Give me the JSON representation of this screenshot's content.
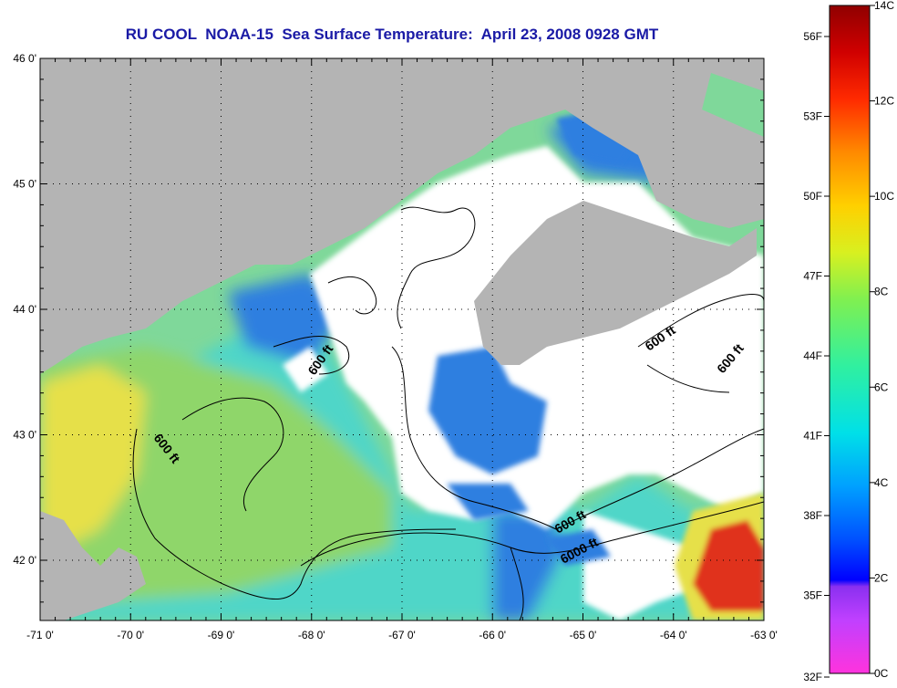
{
  "title": "RU COOL  NOAA-15  Sea Surface Temperature:  April 23, 2008 0928 GMT",
  "map": {
    "lon_ticks": [
      "-71 0'",
      "-70 0'",
      "-69 0'",
      "-68 0'",
      "-67 0'",
      "-66 0'",
      "-65 0'",
      "-64 0'",
      "-63 0'"
    ],
    "lat_ticks": [
      "46 0'",
      "45 0'",
      "44 0'",
      "43 0'",
      "42 0'"
    ],
    "contour_labels": [
      "600 ft",
      "600 ft",
      "600 ft",
      "600 ft",
      "600 ft",
      "6000 ft"
    ],
    "colors": {
      "land": "#b4b4b4",
      "cloud": "#ffffff",
      "warm_water": "#e6e04a",
      "mid_water": "#8fd66a",
      "cool_water": "#4fd6c8",
      "cold_water": "#2f7fe0",
      "hot_spot": "#e0301a"
    }
  },
  "colorbar": {
    "fahrenheit_labels": [
      "56F",
      "53F",
      "50F",
      "47F",
      "44F",
      "41F",
      "38F",
      "35F",
      "32F"
    ],
    "celsius_labels": [
      "14C",
      "12C",
      "10C",
      "8C",
      "6C",
      "4C",
      "2C",
      "0C"
    ]
  }
}
